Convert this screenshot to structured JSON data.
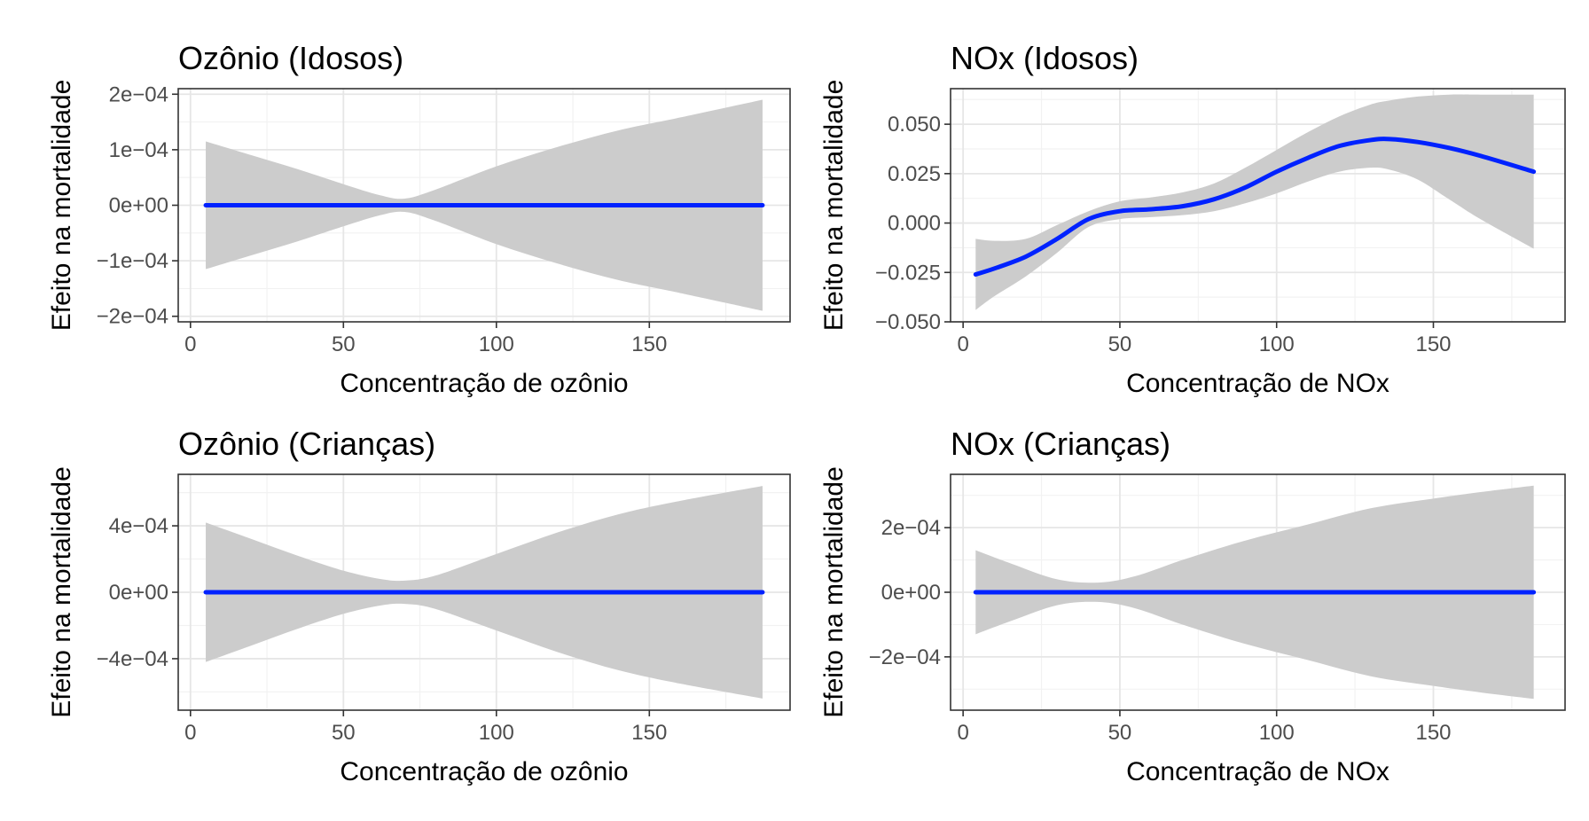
{
  "colors": {
    "line": "#0022ff",
    "ribbon": "#cccccc"
  },
  "chart_data": [
    {
      "type": "line",
      "title": "Ozônio (Idosos)",
      "xlabel": "Concentração de ozônio",
      "ylabel": "Efeito na mortalidade",
      "xlim": [
        -4,
        196
      ],
      "ylim": [
        -0.00021,
        0.00021
      ],
      "xticks": [
        0,
        50,
        100,
        150
      ],
      "xtick_labels": [
        "0",
        "50",
        "100",
        "150"
      ],
      "yticks": [
        -0.0002,
        -0.0001,
        0,
        0.0001,
        0.0002
      ],
      "ytick_labels": [
        "−2e−04",
        "−1e−04",
        "0e+00",
        "1e−04",
        "2e−04"
      ],
      "series": [
        {
          "x": [
            5,
            20,
            35,
            50,
            62,
            70,
            80,
            100,
            120,
            140,
            160,
            187
          ],
          "y": [
            0,
            0,
            0,
            0,
            0,
            0,
            0,
            0,
            0,
            0,
            0,
            0
          ],
          "lower": [
            -0.000115,
            -9e-05,
            -6.5e-05,
            -3.8e-05,
            -1.8e-05,
            -1.2e-05,
            -2.8e-05,
            -7e-05,
            -0.000105,
            -0.000135,
            -0.000158,
            -0.00019
          ],
          "upper": [
            0.000115,
            9e-05,
            6.5e-05,
            3.8e-05,
            1.8e-05,
            1.2e-05,
            2.8e-05,
            7e-05,
            0.000105,
            0.000135,
            0.000158,
            0.00019
          ]
        }
      ]
    },
    {
      "type": "line",
      "title": "NOx (Idosos)",
      "xlabel": "Concentração de NOx",
      "ylabel": "Efeito na mortalidade",
      "xlim": [
        -4,
        192
      ],
      "ylim": [
        -0.05,
        0.068
      ],
      "xticks": [
        0,
        50,
        100,
        150
      ],
      "xtick_labels": [
        "0",
        "50",
        "100",
        "150"
      ],
      "yticks": [
        -0.05,
        -0.025,
        0,
        0.025,
        0.05
      ],
      "ytick_labels": [
        "−0.050",
        "−0.025",
        "0.000",
        "0.025",
        "0.050"
      ],
      "series": [
        {
          "x": [
            4,
            10,
            20,
            30,
            40,
            50,
            60,
            70,
            80,
            90,
            100,
            110,
            120,
            130,
            136,
            145,
            155,
            165,
            182
          ],
          "y": [
            -0.026,
            -0.023,
            -0.017,
            -0.008,
            0.002,
            0.006,
            0.007,
            0.0085,
            0.012,
            0.018,
            0.026,
            0.033,
            0.039,
            0.042,
            0.0425,
            0.041,
            0.038,
            0.034,
            0.026
          ],
          "lower": [
            -0.044,
            -0.037,
            -0.027,
            -0.015,
            -0.002,
            0.002,
            0.003,
            0.004,
            0.006,
            0.01,
            0.015,
            0.021,
            0.026,
            0.028,
            0.027,
            0.022,
            0.012,
            0.002,
            -0.013
          ],
          "upper": [
            -0.008,
            -0.009,
            -0.008,
            -0.001,
            0.006,
            0.011,
            0.013,
            0.0155,
            0.02,
            0.028,
            0.037,
            0.046,
            0.054,
            0.06,
            0.062,
            0.064,
            0.065,
            0.065,
            0.065
          ]
        }
      ]
    },
    {
      "type": "line",
      "title": "Ozônio (Crianças)",
      "xlabel": "Concentração de ozônio",
      "ylabel": "Efeito na mortalidade",
      "xlim": [
        -4,
        196
      ],
      "ylim": [
        -0.00071,
        0.00071
      ],
      "xticks": [
        0,
        50,
        100,
        150
      ],
      "xtick_labels": [
        "0",
        "50",
        "100",
        "150"
      ],
      "yticks": [
        -0.0004,
        0,
        0.0004
      ],
      "ytick_labels": [
        "−4e−04",
        "0e+00",
        "4e−04"
      ],
      "series": [
        {
          "x": [
            5,
            20,
            35,
            50,
            62,
            70,
            80,
            100,
            120,
            140,
            160,
            187
          ],
          "y": [
            0,
            0,
            0,
            0,
            0,
            0,
            0,
            0,
            0,
            0,
            0,
            0
          ],
          "lower": [
            -0.00042,
            -0.00032,
            -0.00022,
            -0.00013,
            -8e-05,
            -7e-05,
            -0.0001,
            -0.00023,
            -0.00036,
            -0.00047,
            -0.00055,
            -0.00064
          ],
          "upper": [
            0.00042,
            0.00032,
            0.00022,
            0.00013,
            8e-05,
            7e-05,
            0.0001,
            0.00023,
            0.00036,
            0.00047,
            0.00055,
            0.00064
          ]
        }
      ]
    },
    {
      "type": "line",
      "title": "NOx (Crianças)",
      "xlabel": "Concentração de NOx",
      "ylabel": "Efeito na mortalidade",
      "xlim": [
        -4,
        192
      ],
      "ylim": [
        -0.000365,
        0.000365
      ],
      "xticks": [
        0,
        50,
        100,
        150
      ],
      "xtick_labels": [
        "0",
        "50",
        "100",
        "150"
      ],
      "yticks": [
        -0.0002,
        0,
        0.0002
      ],
      "ytick_labels": [
        "−2e−04",
        "0e+00",
        "2e−04"
      ],
      "series": [
        {
          "x": [
            4,
            15,
            30,
            43,
            55,
            70,
            90,
            110,
            130,
            150,
            165,
            182
          ],
          "y": [
            0,
            0,
            0,
            0,
            0,
            0,
            0,
            0,
            0,
            0,
            0,
            0
          ],
          "lower": [
            -0.00013,
            -9e-05,
            -4e-05,
            -3e-05,
            -5e-05,
            -0.0001,
            -0.00016,
            -0.00021,
            -0.00026,
            -0.00029,
            -0.00031,
            -0.00033
          ],
          "upper": [
            0.00013,
            9e-05,
            4e-05,
            3e-05,
            5e-05,
            0.0001,
            0.00016,
            0.00021,
            0.00026,
            0.00029,
            0.00031,
            0.00033
          ]
        }
      ]
    }
  ]
}
